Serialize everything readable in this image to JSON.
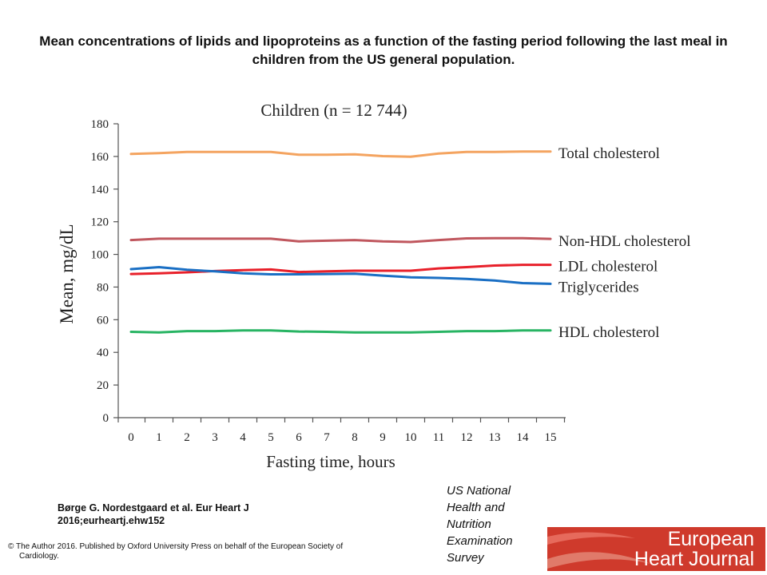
{
  "slide": {
    "title": "Mean concentrations of lipids and lipoproteins as a function of the fasting period following the last meal in children from the US general population.",
    "citation": "Børge G. Nordestgaard et al. Eur Heart J 2016;eurheartj.ehw152",
    "source_note": "US National Health and Nutrition Examination Survey",
    "copyright_line1": "© The Author 2016. Published by Oxford University Press on behalf of the European Society of",
    "copyright_line2": "Cardiology.",
    "logo_text": [
      "European",
      "Heart Journal"
    ],
    "logo_color": "#cf3a2c"
  },
  "chart_data": {
    "type": "line",
    "title": "Children (n = 12 744)",
    "xlabel": "Fasting time, hours",
    "ylabel": "Mean, mg/dL",
    "x": [
      0,
      1,
      2,
      3,
      4,
      5,
      6,
      7,
      8,
      9,
      10,
      11,
      12,
      13,
      14,
      15
    ],
    "xticks": [
      "0",
      "1",
      "2",
      "3",
      "4",
      "5",
      "6",
      "7",
      "8",
      "9",
      "10",
      "11",
      "12",
      "13",
      "14",
      "15"
    ],
    "yticks": [
      "0",
      "20",
      "40",
      "60",
      "80",
      "100",
      "120",
      "140",
      "160",
      "180"
    ],
    "ylim": [
      0,
      180
    ],
    "grid": false,
    "legend": "labels at right end of lines",
    "series": [
      {
        "name": "Total cholesterol",
        "color": "#f4a460",
        "values": [
          161.5,
          162,
          162.8,
          162.8,
          162.8,
          162.8,
          161,
          161,
          161.3,
          160.2,
          159.8,
          161.8,
          162.8,
          162.8,
          163,
          163
        ]
      },
      {
        "name": "Non-HDL cholesterol",
        "color": "#c0575e",
        "values": [
          108.8,
          109.6,
          109.6,
          109.6,
          109.6,
          109.6,
          108,
          108.4,
          108.8,
          108,
          107.6,
          108.8,
          109.8,
          109.9,
          109.9,
          109.5
        ]
      },
      {
        "name": "LDL cholesterol",
        "color": "#e8202a",
        "values": [
          88,
          88.4,
          89,
          89.8,
          90.4,
          90.8,
          89.2,
          89.6,
          90,
          90,
          90,
          91.4,
          92.2,
          93.2,
          93.6,
          93.6
        ]
      },
      {
        "name": "Triglycerides",
        "color": "#1a6fc4",
        "values": [
          91,
          92.2,
          90.6,
          89.6,
          88.4,
          87.8,
          87.8,
          88,
          88.2,
          87,
          86,
          85.6,
          85,
          84,
          82.4,
          82
        ]
      },
      {
        "name": "HDL cholesterol",
        "color": "#28b463",
        "values": [
          52.6,
          52.2,
          53,
          53,
          53.4,
          53.4,
          52.8,
          52.6,
          52.2,
          52.2,
          52.2,
          52.6,
          53,
          53,
          53.4,
          53.4
        ]
      }
    ]
  }
}
